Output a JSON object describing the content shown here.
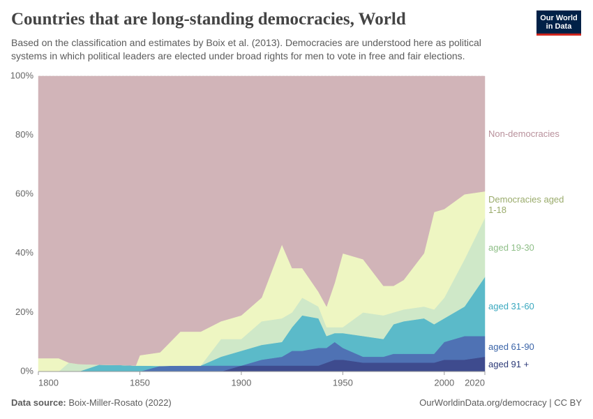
{
  "header": {
    "title": "Countries that are long-standing democracies, World",
    "subtitle": "Based on the classification and estimates by Boix et al. (2013). Democracies are understood here as political systems in which political leaders are elected under broad rights for men to vote in free and fair elections.",
    "logo": "Our World in Data"
  },
  "footer": {
    "source_label": "Data source:",
    "source": "Boix-Miller-Rosato (2022)",
    "link": "OurWorldinData.org/democracy | CC BY"
  },
  "chart_data": {
    "type": "stacked_area",
    "x": [
      1800,
      1810,
      1815,
      1820,
      1830,
      1840,
      1848,
      1850,
      1860,
      1870,
      1880,
      1890,
      1900,
      1910,
      1920,
      1925,
      1930,
      1938,
      1942,
      1946,
      1950,
      1960,
      1970,
      1975,
      1980,
      1990,
      1995,
      2000,
      2010,
      2020
    ],
    "xlim": [
      1800,
      2020
    ],
    "xticks": [
      1800,
      1850,
      1900,
      1950,
      2000,
      2020
    ],
    "ylim": [
      0,
      100
    ],
    "yticks": [
      {
        "value": 0,
        "label": "0%"
      },
      {
        "value": 20,
        "label": "20%"
      },
      {
        "value": 40,
        "label": "40%"
      },
      {
        "value": 60,
        "label": "60%"
      },
      {
        "value": 80,
        "label": "80%"
      },
      {
        "value": 100,
        "label": "100%"
      }
    ],
    "grid": true,
    "series": [
      {
        "name": "aged 91 +",
        "color": "#3e4b8e",
        "label_color": "#2c3a78",
        "values": [
          0,
          0,
          0,
          0,
          0,
          0,
          0,
          0,
          0,
          0,
          0,
          0,
          2,
          2,
          2,
          2,
          2,
          2,
          3,
          4,
          4,
          3,
          3,
          3,
          3,
          3,
          3,
          4,
          4,
          5
        ]
      },
      {
        "name": "aged 61-90",
        "color": "#4f72b4",
        "label_color": "#3a64a8",
        "values": [
          0,
          0,
          0,
          0,
          0,
          0,
          0,
          0,
          1.9,
          2,
          2,
          2,
          0,
          2,
          3,
          5,
          5,
          6,
          5,
          6,
          4,
          2,
          2,
          3,
          3,
          3,
          3,
          6,
          8,
          7
        ]
      },
      {
        "name": "aged 31-60",
        "color": "#5bbac9",
        "label_color": "#3aa8bf",
        "values": [
          0,
          0,
          0,
          0,
          2.3,
          2.2,
          2,
          2,
          0,
          0,
          0,
          3,
          5,
          5,
          5,
          8,
          12,
          10,
          4,
          3,
          5,
          7,
          6,
          10,
          11,
          12,
          10,
          8,
          10,
          20
        ]
      },
      {
        "name": "aged 19-30",
        "color": "#cfe8c8",
        "label_color": "#8fbf88",
        "values": [
          0,
          0,
          3,
          2.5,
          0,
          0,
          0,
          0,
          0,
          0,
          0,
          6,
          4,
          8,
          8,
          5,
          6,
          4,
          3,
          2,
          2,
          8,
          8,
          4,
          4,
          4,
          5,
          7,
          16,
          20
        ]
      },
      {
        "name": "Democracies aged 1-18",
        "color": "#eef6c2",
        "label_color": "#9aab6b",
        "values": [
          4.5,
          4.5,
          0,
          0,
          0,
          0,
          0,
          3.5,
          4.6,
          11.5,
          11.5,
          6,
          8,
          8,
          25,
          15,
          10,
          5,
          7,
          15,
          25,
          18,
          10,
          9,
          10,
          18,
          33,
          30,
          22,
          9
        ]
      },
      {
        "name": "Non-democracies",
        "color": "#d1b4b8",
        "label_color": "#b8909b",
        "values": [
          95.5,
          95.5,
          97,
          97.5,
          97.7,
          97.8,
          98,
          94.5,
          93.5,
          86.5,
          86.5,
          83,
          81,
          75,
          57,
          65,
          65,
          73,
          78,
          70,
          60,
          62,
          71,
          71,
          69,
          60,
          46,
          45,
          40,
          39
        ]
      }
    ]
  }
}
